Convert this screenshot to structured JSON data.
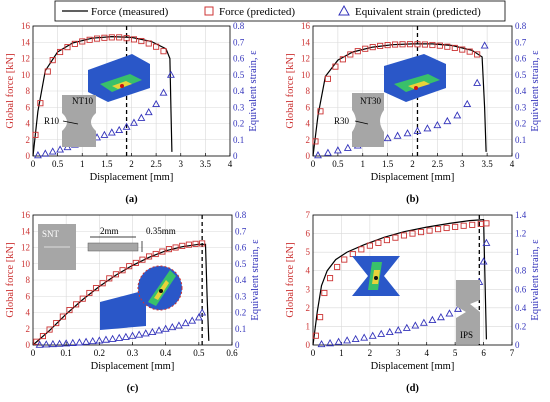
{
  "legend": {
    "measured": "Force (measured)",
    "predicted": "Force (predicted)",
    "strain": "Equivalent strain (predicted)"
  },
  "colors": {
    "measured": "#000000",
    "force_pred": "#cc3333",
    "strain_pred": "#3333bb",
    "left_axis": "#cc3333",
    "right_axis": "#3333bb"
  },
  "chart_data": [
    {
      "type": "line",
      "caption": "(a)",
      "xlabel": "Displacement [mm]",
      "ylabel": "Global force [kN]",
      "y2label": "Equivalent strain, ε",
      "xlim": [
        0,
        4
      ],
      "ylim": [
        0,
        16
      ],
      "y2lim": [
        0,
        0.8
      ],
      "xticks": [
        "0",
        "0.5",
        "1",
        "1.5",
        "2",
        "2.5",
        "3",
        "3.5",
        "4"
      ],
      "yticks": [
        "0",
        "2",
        "4",
        "6",
        "8",
        "10",
        "12",
        "14",
        "16"
      ],
      "y2ticks": [
        "0",
        "0.1",
        "0.2",
        "0.3",
        "0.4",
        "0.5",
        "0.6",
        "0.7",
        "0.8"
      ],
      "vline_x": 1.9,
      "inset_labels": [
        "NT10",
        "R10"
      ],
      "series": [
        {
          "name": "Force (measured)",
          "x": [
            0,
            0.1,
            0.25,
            0.5,
            0.8,
            1.2,
            1.6,
            2.0,
            2.4,
            2.7,
            2.78,
            2.8,
            2.82
          ],
          "y": [
            0,
            5.5,
            10.5,
            12.8,
            13.9,
            14.5,
            14.7,
            14.6,
            14.1,
            13.2,
            12.0,
            6.0,
            0.5
          ]
        },
        {
          "name": "Force (predicted)",
          "x": [
            0.05,
            0.15,
            0.3,
            0.4,
            0.55,
            0.7,
            0.85,
            1.0,
            1.15,
            1.3,
            1.45,
            1.6,
            1.75,
            1.9,
            2.05,
            2.2,
            2.35,
            2.5,
            2.65
          ],
          "y": [
            2.6,
            6.5,
            10.4,
            11.8,
            12.8,
            13.4,
            13.8,
            14.1,
            14.3,
            14.45,
            14.55,
            14.6,
            14.6,
            14.5,
            14.35,
            14.15,
            13.85,
            13.45,
            12.9
          ]
        },
        {
          "name": "Equivalent strain (predicted)",
          "x": [
            0.1,
            0.25,
            0.4,
            0.55,
            0.7,
            0.85,
            1.0,
            1.15,
            1.3,
            1.45,
            1.6,
            1.75,
            1.9,
            2.05,
            2.2,
            2.35,
            2.5,
            2.65,
            2.8
          ],
          "y": [
            0.005,
            0.015,
            0.028,
            0.04,
            0.055,
            0.07,
            0.085,
            0.1,
            0.115,
            0.13,
            0.145,
            0.16,
            0.18,
            0.205,
            0.235,
            0.27,
            0.32,
            0.39,
            0.5
          ]
        }
      ]
    },
    {
      "type": "line",
      "caption": "(b)",
      "xlabel": "Displacement [mm]",
      "ylabel": "Global force [kN]",
      "y2label": "Equivalent strain, ε",
      "xlim": [
        0,
        4
      ],
      "ylim": [
        0,
        16
      ],
      "y2lim": [
        0,
        0.8
      ],
      "xticks": [
        "0",
        "0.5",
        "1",
        "1.5",
        "2",
        "2.5",
        "3",
        "3.5",
        "4"
      ],
      "yticks": [
        "0",
        "2",
        "4",
        "6",
        "8",
        "10",
        "12",
        "14",
        "16"
      ],
      "y2ticks": [
        "0",
        "0.1",
        "0.2",
        "0.3",
        "0.4",
        "0.5",
        "0.6",
        "0.7",
        "0.8"
      ],
      "vline_x": 2.1,
      "inset_labels": [
        "NT30",
        "R30"
      ],
      "series": [
        {
          "name": "Force (measured)",
          "x": [
            0,
            0.1,
            0.25,
            0.5,
            0.8,
            1.2,
            1.6,
            2.0,
            2.4,
            2.8,
            3.2,
            3.4,
            3.45,
            3.48
          ],
          "y": [
            0,
            5.0,
            9.8,
            11.8,
            12.8,
            13.4,
            13.7,
            13.8,
            13.8,
            13.6,
            13.0,
            12.2,
            6.0,
            0.5
          ]
        },
        {
          "name": "Force (predicted)",
          "x": [
            0.05,
            0.15,
            0.3,
            0.45,
            0.6,
            0.75,
            0.9,
            1.05,
            1.2,
            1.35,
            1.5,
            1.65,
            1.8,
            1.95,
            2.1,
            2.25,
            2.4,
            2.55,
            2.7,
            2.85,
            3.0,
            3.15,
            3.3
          ],
          "y": [
            1.8,
            5.5,
            9.5,
            11.0,
            11.9,
            12.5,
            12.9,
            13.2,
            13.4,
            13.55,
            13.65,
            13.72,
            13.75,
            13.76,
            13.75,
            13.72,
            13.66,
            13.58,
            13.45,
            13.3,
            13.1,
            12.85,
            12.5
          ]
        },
        {
          "name": "Equivalent strain (predicted)",
          "x": [
            0.1,
            0.3,
            0.5,
            0.7,
            0.9,
            1.1,
            1.3,
            1.5,
            1.7,
            1.9,
            2.1,
            2.3,
            2.5,
            2.7,
            2.9,
            3.1,
            3.3,
            3.45
          ],
          "y": [
            0.005,
            0.02,
            0.035,
            0.05,
            0.065,
            0.08,
            0.095,
            0.11,
            0.125,
            0.14,
            0.155,
            0.17,
            0.19,
            0.215,
            0.25,
            0.32,
            0.45,
            0.68
          ]
        }
      ]
    },
    {
      "type": "line",
      "caption": "(c)",
      "xlabel": "Displacement [mm]",
      "ylabel": "Global force [kN]",
      "y2label": "Equivalent strain, ε",
      "xlim": [
        0,
        0.6
      ],
      "ylim": [
        0,
        16
      ],
      "y2lim": [
        0,
        0.8
      ],
      "xticks": [
        "0",
        "0.1",
        "0.2",
        "0.3",
        "0.4",
        "0.5",
        "0.6"
      ],
      "yticks": [
        "0",
        "2",
        "4",
        "6",
        "8",
        "10",
        "12",
        "14",
        "16"
      ],
      "y2ticks": [
        "0",
        "0.1",
        "0.2",
        "0.3",
        "0.4",
        "0.5",
        "0.6",
        "0.7",
        "0.8"
      ],
      "vline_x": 0.51,
      "inset_labels": [
        "SNT",
        "2mm",
        "0.35mm"
      ],
      "series": [
        {
          "name": "Force (measured)",
          "x": [
            0,
            0.05,
            0.1,
            0.15,
            0.2,
            0.25,
            0.3,
            0.35,
            0.4,
            0.45,
            0.5,
            0.52,
            0.525,
            0.53
          ],
          "y": [
            0,
            1.8,
            3.8,
            5.6,
            7.2,
            8.6,
            9.8,
            10.8,
            11.6,
            12.1,
            12.4,
            12.4,
            6.0,
            0.5
          ]
        },
        {
          "name": "Force (predicted)",
          "x": [
            0.01,
            0.03,
            0.05,
            0.07,
            0.09,
            0.11,
            0.13,
            0.15,
            0.17,
            0.19,
            0.21,
            0.23,
            0.25,
            0.27,
            0.29,
            0.31,
            0.33,
            0.35,
            0.37,
            0.39,
            0.41,
            0.43,
            0.45,
            0.47,
            0.49,
            0.51
          ],
          "y": [
            0.4,
            1.1,
            1.9,
            2.7,
            3.5,
            4.3,
            5.0,
            5.7,
            6.4,
            7.0,
            7.6,
            8.2,
            8.7,
            9.2,
            9.7,
            10.1,
            10.5,
            10.9,
            11.2,
            11.5,
            11.8,
            12.0,
            12.2,
            12.35,
            12.45,
            12.5
          ]
        },
        {
          "name": "Equivalent strain (predicted)",
          "x": [
            0.02,
            0.04,
            0.06,
            0.08,
            0.1,
            0.12,
            0.14,
            0.16,
            0.18,
            0.2,
            0.22,
            0.24,
            0.26,
            0.28,
            0.3,
            0.32,
            0.34,
            0.36,
            0.38,
            0.4,
            0.42,
            0.44,
            0.46,
            0.48,
            0.5,
            0.51
          ],
          "y": [
            0.002,
            0.004,
            0.006,
            0.008,
            0.01,
            0.013,
            0.016,
            0.02,
            0.024,
            0.028,
            0.033,
            0.038,
            0.044,
            0.05,
            0.057,
            0.064,
            0.072,
            0.08,
            0.09,
            0.1,
            0.11,
            0.12,
            0.135,
            0.15,
            0.17,
            0.2
          ]
        }
      ]
    },
    {
      "type": "line",
      "caption": "(d)",
      "xlabel": "Displacement [mm]",
      "ylabel": "Global force [kN]",
      "y2label": "Equivalent strain, ε",
      "xlim": [
        0,
        7
      ],
      "ylim": [
        0,
        7
      ],
      "y2lim": [
        0,
        1.4
      ],
      "xticks": [
        "0",
        "1",
        "2",
        "3",
        "4",
        "5",
        "6",
        "7"
      ],
      "yticks": [
        "0",
        "1",
        "2",
        "3",
        "4",
        "5",
        "6",
        "7"
      ],
      "y2ticks": [
        "0",
        "0.2",
        "0.4",
        "0.6",
        "0.8",
        "1",
        "1.2",
        "1.4"
      ],
      "vline_x": 5.85,
      "inset_labels": [
        "IPS"
      ],
      "series": [
        {
          "name": "Force (measured)",
          "x": [
            0,
            0.15,
            0.3,
            0.5,
            0.8,
            1.2,
            1.8,
            2.5,
            3.2,
            4.0,
            4.8,
            5.5,
            6.0,
            6.05,
            6.1
          ],
          "y": [
            0,
            1.8,
            3.2,
            4.0,
            4.6,
            5.0,
            5.4,
            5.8,
            6.1,
            6.35,
            6.55,
            6.7,
            6.75,
            3.5,
            0.3
          ]
        },
        {
          "name": "Force (predicted)",
          "x": [
            0.1,
            0.25,
            0.4,
            0.6,
            0.85,
            1.1,
            1.4,
            1.7,
            2.0,
            2.3,
            2.6,
            2.9,
            3.2,
            3.5,
            3.8,
            4.1,
            4.4,
            4.7,
            5.0,
            5.3,
            5.6,
            5.9,
            6.1
          ],
          "y": [
            0.5,
            1.5,
            2.8,
            3.6,
            4.2,
            4.6,
            4.9,
            5.15,
            5.35,
            5.5,
            5.65,
            5.78,
            5.9,
            6.0,
            6.08,
            6.16,
            6.24,
            6.3,
            6.36,
            6.42,
            6.47,
            6.52,
            6.55
          ]
        },
        {
          "name": "Equivalent strain (predicted)",
          "x": [
            0.3,
            0.6,
            0.9,
            1.2,
            1.5,
            1.8,
            2.1,
            2.4,
            2.7,
            3.0,
            3.3,
            3.6,
            3.9,
            4.2,
            4.5,
            4.8,
            5.1,
            5.4,
            5.7,
            5.85,
            6.0,
            6.1
          ],
          "y": [
            0.01,
            0.02,
            0.035,
            0.05,
            0.065,
            0.08,
            0.1,
            0.12,
            0.14,
            0.16,
            0.185,
            0.21,
            0.24,
            0.27,
            0.3,
            0.34,
            0.39,
            0.45,
            0.55,
            0.68,
            0.9,
            1.1
          ]
        }
      ]
    }
  ]
}
